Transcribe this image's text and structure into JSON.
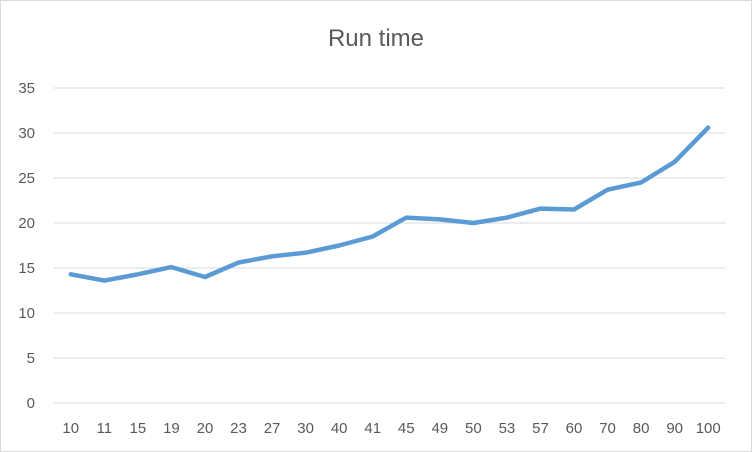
{
  "chart_data": {
    "type": "line",
    "title": "Run time",
    "xlabel": "",
    "ylabel": "",
    "categories": [
      "10",
      "11",
      "15",
      "19",
      "20",
      "23",
      "27",
      "30",
      "40",
      "41",
      "45",
      "49",
      "50",
      "53",
      "57",
      "60",
      "70",
      "80",
      "90",
      "100"
    ],
    "series": [
      {
        "values": [
          14.3,
          13.6,
          14.3,
          15.1,
          14.0,
          15.6,
          16.3,
          16.7,
          17.5,
          18.5,
          20.6,
          20.4,
          20.0,
          20.6,
          21.6,
          21.5,
          23.7,
          24.5,
          26.8,
          30.6
        ]
      }
    ],
    "ylim": [
      0,
      35
    ],
    "yticks": [
      0,
      5,
      10,
      15,
      20,
      25,
      30,
      35
    ],
    "grid": "horizontal",
    "legend": "none",
    "colors": {
      "series": "#5b9bd5",
      "grid": "#d9d9d9",
      "text": "#595959"
    }
  }
}
